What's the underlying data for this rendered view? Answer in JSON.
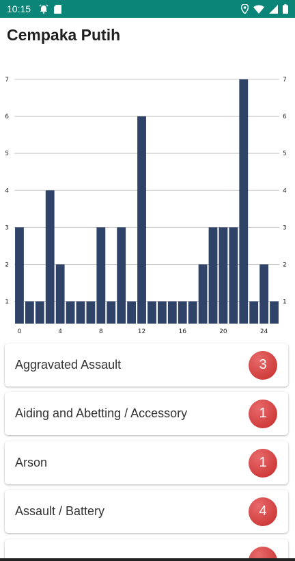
{
  "status_bar": {
    "time": "10:15",
    "left_icons": [
      "alarm-icon",
      "sd-card-icon"
    ],
    "right_icons": [
      "location-icon",
      "wifi-icon",
      "signal-icon",
      "battery-icon"
    ],
    "background": "#0b8578"
  },
  "page": {
    "title": "Cempaka Putih"
  },
  "chart_data": {
    "type": "bar",
    "x": [
      0,
      1,
      2,
      3,
      4,
      5,
      6,
      7,
      8,
      9,
      10,
      11,
      12,
      13,
      14,
      15,
      16,
      17,
      18,
      19,
      20,
      21,
      22,
      23,
      24,
      25
    ],
    "values": [
      3,
      1,
      1,
      4,
      2,
      1,
      1,
      1,
      3,
      1,
      3,
      1,
      6,
      1,
      1,
      1,
      1,
      1,
      2,
      3,
      3,
      3,
      7,
      1,
      2,
      1
    ],
    "xticks": [
      0,
      4,
      8,
      12,
      16,
      20,
      24
    ],
    "yticks": [
      1,
      2,
      3,
      4,
      5,
      6,
      7
    ],
    "ylim": [
      0.4,
      7
    ],
    "grid": true,
    "bar_color": "#2f4267",
    "title": "",
    "xlabel": "",
    "ylabel": ""
  },
  "categories_list": [
    {
      "label": "Aggravated Assault",
      "count": "3"
    },
    {
      "label": "Aiding and Abetting / Accessory",
      "count": "1"
    },
    {
      "label": "Arson",
      "count": "1"
    },
    {
      "label": "Assault / Battery",
      "count": "4"
    },
    {
      "label": "",
      "count": ""
    }
  ],
  "colors": {
    "badge": "#d23a3a",
    "title_text": "#1f1f1f"
  }
}
